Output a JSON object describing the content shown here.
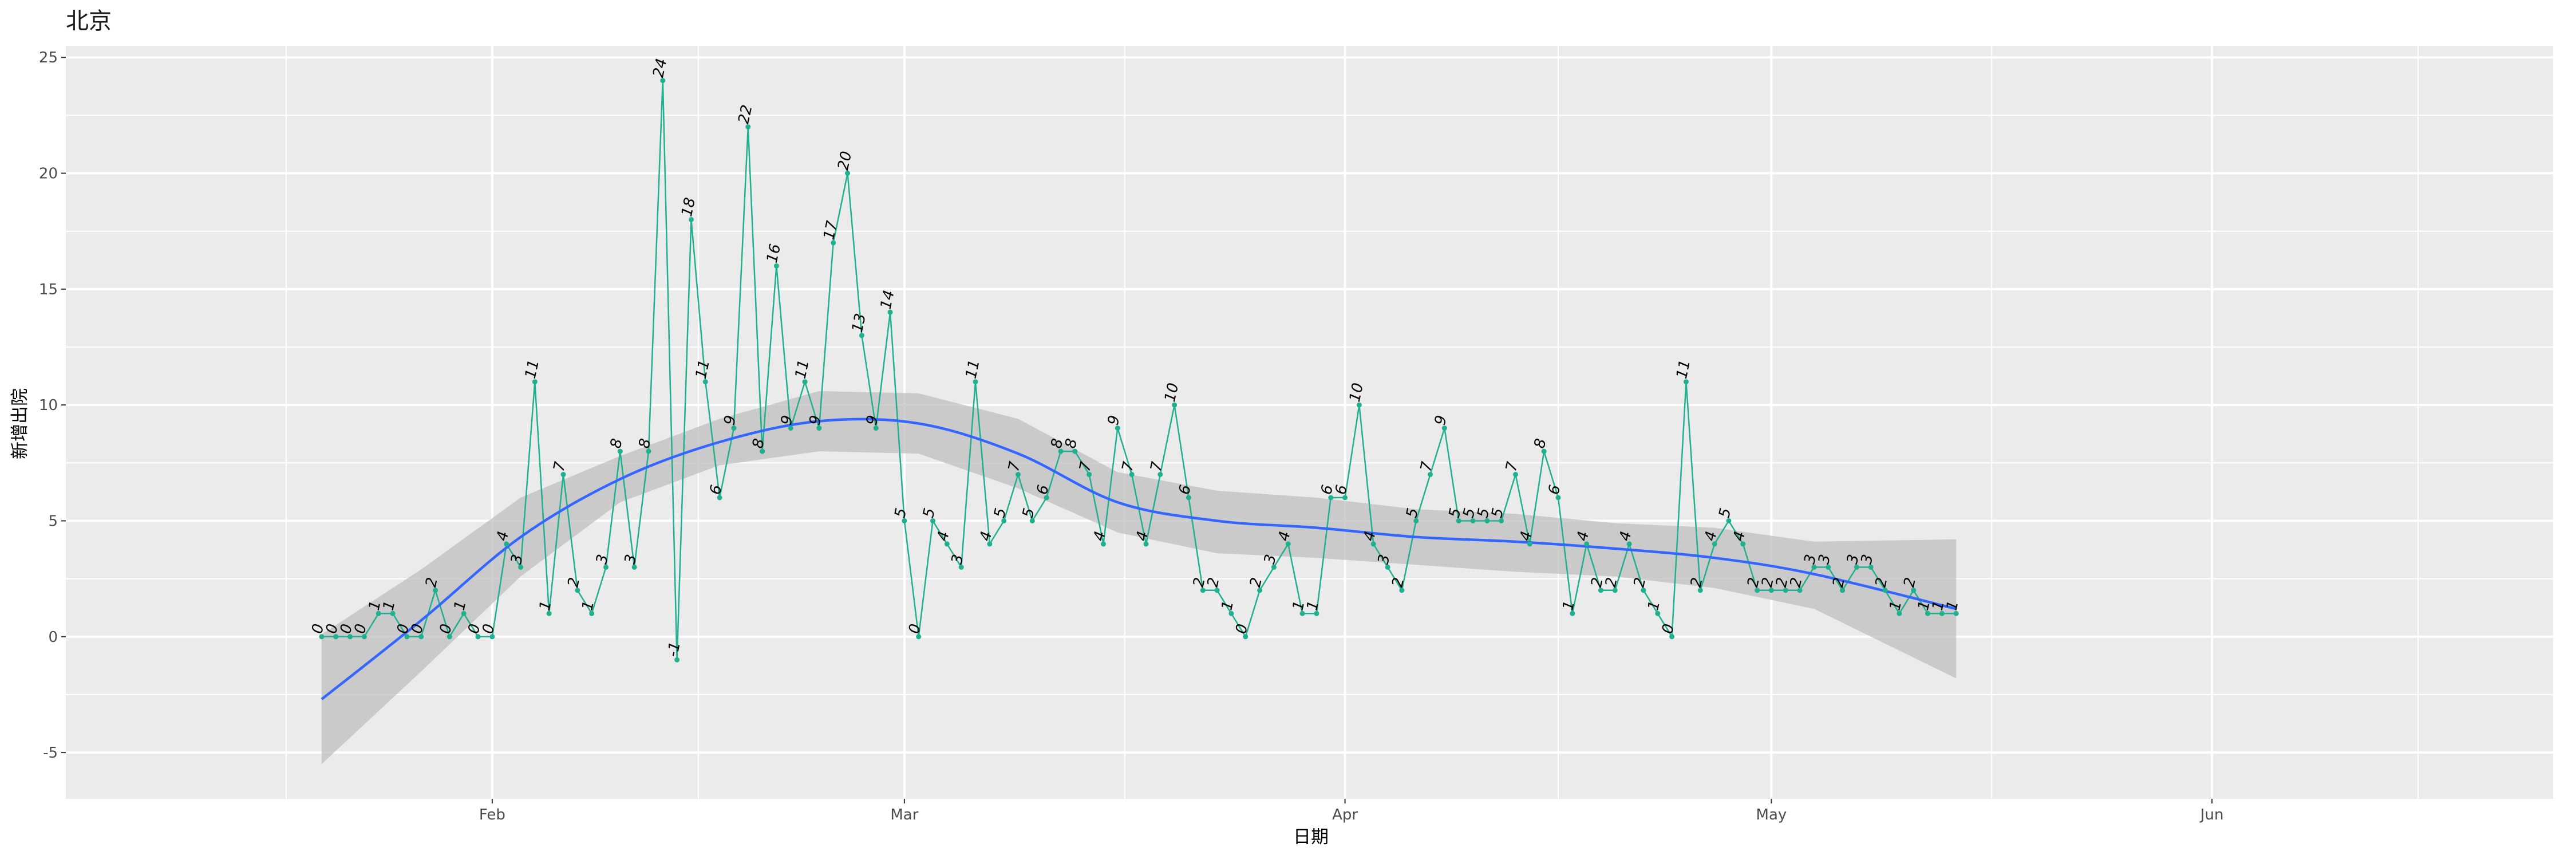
{
  "chart_data": {
    "type": "line",
    "title": "北京",
    "xlabel": "日期",
    "ylabel": "新增出院",
    "x_ticks": [
      "2020-02-01",
      "2020-03-01",
      "2020-04-01",
      "2020-05-01",
      "2020-06-01"
    ],
    "x_tick_labels": [
      "Feb",
      "Mar",
      "Apr",
      "May",
      "Jun"
    ],
    "xlim": [
      "2020-01-02",
      "2020-06-25"
    ],
    "y_ticks": [
      -5,
      0,
      5,
      10,
      15,
      20,
      25
    ],
    "ylim": [
      -7,
      25.5
    ],
    "grid": true,
    "colors": {
      "panel": "#ebebeb",
      "grid": "#ffffff",
      "series_line": "#1fb08f",
      "series_point": "#1fb08f",
      "smooth_line": "#3366ff",
      "ribbon": "#bfbfbf"
    },
    "series": [
      {
        "values": [
          [
            "2020-01-20",
            0
          ],
          [
            "2020-01-21",
            0
          ],
          [
            "2020-01-22",
            0
          ],
          [
            "2020-01-23",
            0
          ],
          [
            "2020-01-24",
            1
          ],
          [
            "2020-01-25",
            1
          ],
          [
            "2020-01-26",
            0
          ],
          [
            "2020-01-27",
            0
          ],
          [
            "2020-01-28",
            2
          ],
          [
            "2020-01-29",
            0
          ],
          [
            "2020-01-30",
            1
          ],
          [
            "2020-01-31",
            0
          ],
          [
            "2020-02-01",
            0
          ],
          [
            "2020-02-02",
            4
          ],
          [
            "2020-02-03",
            3
          ],
          [
            "2020-02-04",
            11
          ],
          [
            "2020-02-05",
            1
          ],
          [
            "2020-02-06",
            7
          ],
          [
            "2020-02-07",
            2
          ],
          [
            "2020-02-08",
            1
          ],
          [
            "2020-02-09",
            3
          ],
          [
            "2020-02-10",
            8
          ],
          [
            "2020-02-11",
            3
          ],
          [
            "2020-02-12",
            8
          ],
          [
            "2020-02-13",
            24
          ],
          [
            "2020-02-14",
            -1
          ],
          [
            "2020-02-15",
            18
          ],
          [
            "2020-02-16",
            11
          ],
          [
            "2020-02-17",
            6
          ],
          [
            "2020-02-18",
            9
          ],
          [
            "2020-02-19",
            22
          ],
          [
            "2020-02-20",
            8
          ],
          [
            "2020-02-21",
            16
          ],
          [
            "2020-02-22",
            9
          ],
          [
            "2020-02-23",
            11
          ],
          [
            "2020-02-24",
            9
          ],
          [
            "2020-02-25",
            17
          ],
          [
            "2020-02-26",
            20
          ],
          [
            "2020-02-27",
            13
          ],
          [
            "2020-02-28",
            9
          ],
          [
            "2020-02-29",
            14
          ],
          [
            "2020-03-01",
            5
          ],
          [
            "2020-03-02",
            0
          ],
          [
            "2020-03-03",
            5
          ],
          [
            "2020-03-04",
            4
          ],
          [
            "2020-03-05",
            3
          ],
          [
            "2020-03-06",
            11
          ],
          [
            "2020-03-07",
            4
          ],
          [
            "2020-03-08",
            5
          ],
          [
            "2020-03-09",
            7
          ],
          [
            "2020-03-10",
            5
          ],
          [
            "2020-03-11",
            6
          ],
          [
            "2020-03-12",
            8
          ],
          [
            "2020-03-13",
            8
          ],
          [
            "2020-03-14",
            7
          ],
          [
            "2020-03-15",
            4
          ],
          [
            "2020-03-16",
            9
          ],
          [
            "2020-03-17",
            7
          ],
          [
            "2020-03-18",
            4
          ],
          [
            "2020-03-19",
            7
          ],
          [
            "2020-03-20",
            10
          ],
          [
            "2020-03-21",
            6
          ],
          [
            "2020-03-22",
            2
          ],
          [
            "2020-03-23",
            2
          ],
          [
            "2020-03-24",
            1
          ],
          [
            "2020-03-25",
            0
          ],
          [
            "2020-03-26",
            2
          ],
          [
            "2020-03-27",
            3
          ],
          [
            "2020-03-28",
            4
          ],
          [
            "2020-03-29",
            1
          ],
          [
            "2020-03-30",
            1
          ],
          [
            "2020-03-31",
            6
          ],
          [
            "2020-04-01",
            6
          ],
          [
            "2020-04-02",
            10
          ],
          [
            "2020-04-03",
            4
          ],
          [
            "2020-04-04",
            3
          ],
          [
            "2020-04-05",
            2
          ],
          [
            "2020-04-06",
            5
          ],
          [
            "2020-04-07",
            7
          ],
          [
            "2020-04-08",
            9
          ],
          [
            "2020-04-09",
            5
          ],
          [
            "2020-04-10",
            5
          ],
          [
            "2020-04-11",
            5
          ],
          [
            "2020-04-12",
            5
          ],
          [
            "2020-04-13",
            7
          ],
          [
            "2020-04-14",
            4
          ],
          [
            "2020-04-15",
            8
          ],
          [
            "2020-04-16",
            6
          ],
          [
            "2020-04-17",
            1
          ],
          [
            "2020-04-18",
            4
          ],
          [
            "2020-04-19",
            2
          ],
          [
            "2020-04-20",
            2
          ],
          [
            "2020-04-21",
            4
          ],
          [
            "2020-04-22",
            2
          ],
          [
            "2020-04-23",
            1
          ],
          [
            "2020-04-24",
            0
          ],
          [
            "2020-04-25",
            11
          ],
          [
            "2020-04-26",
            2
          ],
          [
            "2020-04-27",
            4
          ],
          [
            "2020-04-28",
            5
          ],
          [
            "2020-04-29",
            4
          ],
          [
            "2020-04-30",
            2
          ],
          [
            "2020-05-01",
            2
          ],
          [
            "2020-05-02",
            2
          ],
          [
            "2020-05-03",
            2
          ],
          [
            "2020-05-04",
            3
          ],
          [
            "2020-05-05",
            3
          ],
          [
            "2020-05-06",
            2
          ],
          [
            "2020-05-07",
            3
          ],
          [
            "2020-05-08",
            3
          ],
          [
            "2020-05-09",
            2
          ],
          [
            "2020-05-10",
            1
          ],
          [
            "2020-05-11",
            2
          ],
          [
            "2020-05-12",
            1
          ],
          [
            "2020-05-13",
            1
          ],
          [
            "2020-05-14",
            1
          ]
        ]
      }
    ],
    "smooth": {
      "type": "loess with confidence band",
      "x": [
        "2020-01-20",
        "2020-01-27",
        "2020-02-03",
        "2020-02-10",
        "2020-02-17",
        "2020-02-24",
        "2020-03-02",
        "2020-03-09",
        "2020-03-16",
        "2020-03-23",
        "2020-03-30",
        "2020-04-06",
        "2020-04-13",
        "2020-04-20",
        "2020-04-27",
        "2020-05-04",
        "2020-05-14"
      ],
      "fit": [
        -2.7,
        0.7,
        4.3,
        6.8,
        8.4,
        9.3,
        9.2,
        7.9,
        5.8,
        5.0,
        4.7,
        4.3,
        4.1,
        3.8,
        3.4,
        2.7,
        1.2
      ],
      "lower": [
        -5.5,
        -1.5,
        2.6,
        5.8,
        7.4,
        8.0,
        7.9,
        6.4,
        4.5,
        3.6,
        3.4,
        3.1,
        2.8,
        2.6,
        2.1,
        1.2,
        -1.8
      ],
      "upper": [
        0.1,
        2.9,
        6.0,
        7.8,
        9.4,
        10.6,
        10.5,
        9.4,
        7.1,
        6.3,
        6.0,
        5.5,
        5.3,
        4.9,
        4.7,
        4.1,
        4.2
      ]
    }
  }
}
